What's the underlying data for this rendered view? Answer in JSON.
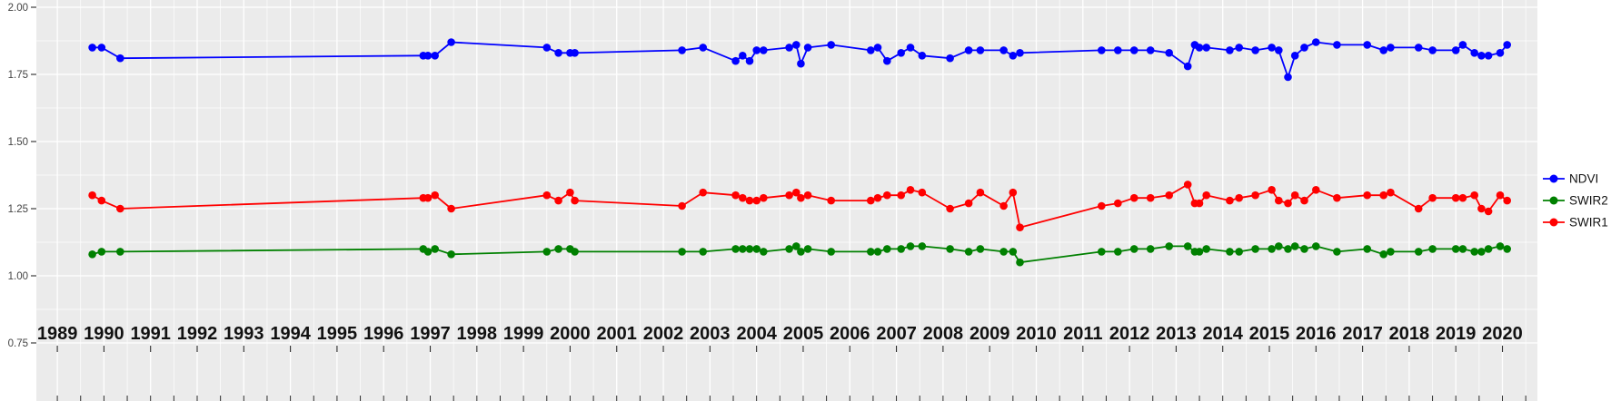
{
  "chart_data": {
    "type": "line",
    "title": "",
    "xlabel": "",
    "ylabel": "",
    "panel_bg": "#EBEBEB",
    "grid_color": "#FFFFFF",
    "grid": "major and minor white gridlines on gray panel",
    "legend_position": "right",
    "xlim": [
      1988.55,
      2020.75
    ],
    "ylim": [
      0.534,
      2.027
    ],
    "ytick_values": [
      2.0,
      1.75,
      1.5,
      1.25,
      1.0,
      0.75
    ],
    "ytick_labels": [
      "2.00",
      "1.75",
      "1.50",
      "1.25",
      "1.00",
      "0.75"
    ],
    "xtick_values": [
      1989,
      1990,
      1991,
      1992,
      1993,
      1994,
      1995,
      1996,
      1997,
      1998,
      1999,
      2000,
      2001,
      2002,
      2003,
      2004,
      2005,
      2006,
      2007,
      2008,
      2009,
      2010,
      2011,
      2012,
      2013,
      2014,
      2015,
      2016,
      2017,
      2018,
      2019,
      2020
    ],
    "xtick_labels": [
      "1989",
      "1990",
      "1991",
      "1992",
      "1993",
      "1994",
      "1995",
      "1996",
      "1997",
      "1998",
      "1999",
      "2000",
      "2001",
      "2002",
      "2003",
      "2004",
      "2005",
      "2006",
      "2007",
      "2008",
      "2009",
      "2010",
      "2011",
      "2012",
      "2013",
      "2014",
      "2015",
      "2016",
      "2017",
      "2018",
      "2019",
      "2020"
    ],
    "x": [
      1989.75,
      1989.95,
      1990.35,
      1996.85,
      1996.95,
      1997.1,
      1997.45,
      1999.5,
      1999.75,
      2000.0,
      2000.1,
      2002.4,
      2002.85,
      2003.55,
      2003.7,
      2003.85,
      2004.0,
      2004.15,
      2004.7,
      2004.85,
      2004.95,
      2005.1,
      2005.6,
      2006.45,
      2006.6,
      2006.8,
      2007.1,
      2007.3,
      2007.55,
      2008.15,
      2008.55,
      2008.8,
      2009.3,
      2009.5,
      2009.65,
      2011.4,
      2011.75,
      2012.1,
      2012.45,
      2012.85,
      2013.25,
      2013.4,
      2013.5,
      2013.65,
      2014.15,
      2014.35,
      2014.7,
      2015.05,
      2015.2,
      2015.4,
      2015.55,
      2015.75,
      2016.0,
      2016.45,
      2017.1,
      2017.45,
      2017.6,
      2018.2,
      2018.5,
      2019.0,
      2019.15,
      2019.4,
      2019.55,
      2019.7,
      2019.95,
      2020.1
    ],
    "series": [
      {
        "name": "NDVI",
        "color": "#0000FF",
        "values": [
          1.85,
          1.85,
          1.81,
          1.82,
          1.82,
          1.82,
          1.87,
          1.85,
          1.83,
          1.83,
          1.83,
          1.84,
          1.85,
          1.8,
          1.82,
          1.8,
          1.84,
          1.84,
          1.85,
          1.86,
          1.79,
          1.85,
          1.86,
          1.84,
          1.85,
          1.8,
          1.83,
          1.85,
          1.82,
          1.81,
          1.84,
          1.84,
          1.84,
          1.82,
          1.83,
          1.84,
          1.84,
          1.84,
          1.84,
          1.83,
          1.78,
          1.86,
          1.85,
          1.85,
          1.84,
          1.85,
          1.84,
          1.85,
          1.84,
          1.74,
          1.82,
          1.85,
          1.87,
          1.86,
          1.86,
          1.84,
          1.85,
          1.85,
          1.84,
          1.84,
          1.86,
          1.83,
          1.82,
          1.82,
          1.83,
          1.86
        ]
      },
      {
        "name": "SWIR2",
        "color": "#008000",
        "values": [
          1.08,
          1.09,
          1.09,
          1.1,
          1.09,
          1.1,
          1.08,
          1.09,
          1.1,
          1.1,
          1.09,
          1.09,
          1.09,
          1.1,
          1.1,
          1.1,
          1.1,
          1.09,
          1.1,
          1.11,
          1.09,
          1.1,
          1.09,
          1.09,
          1.09,
          1.1,
          1.1,
          1.11,
          1.11,
          1.1,
          1.09,
          1.1,
          1.09,
          1.09,
          1.05,
          1.09,
          1.09,
          1.1,
          1.1,
          1.11,
          1.11,
          1.09,
          1.09,
          1.1,
          1.09,
          1.09,
          1.1,
          1.1,
          1.11,
          1.1,
          1.11,
          1.1,
          1.11,
          1.09,
          1.1,
          1.08,
          1.09,
          1.09,
          1.1,
          1.1,
          1.1,
          1.09,
          1.09,
          1.1,
          1.11,
          1.1
        ]
      },
      {
        "name": "SWIR1",
        "color": "#FF0000",
        "values": [
          1.3,
          1.28,
          1.25,
          1.29,
          1.29,
          1.3,
          1.25,
          1.3,
          1.28,
          1.31,
          1.28,
          1.26,
          1.31,
          1.3,
          1.29,
          1.28,
          1.28,
          1.29,
          1.3,
          1.31,
          1.29,
          1.3,
          1.28,
          1.28,
          1.29,
          1.3,
          1.3,
          1.32,
          1.31,
          1.25,
          1.27,
          1.31,
          1.26,
          1.31,
          1.18,
          1.26,
          1.27,
          1.29,
          1.29,
          1.3,
          1.34,
          1.27,
          1.27,
          1.3,
          1.28,
          1.29,
          1.3,
          1.32,
          1.28,
          1.27,
          1.3,
          1.28,
          1.32,
          1.29,
          1.3,
          1.3,
          1.31,
          1.25,
          1.29,
          1.29,
          1.29,
          1.3,
          1.25,
          1.24,
          1.3,
          1.28
        ]
      }
    ],
    "legend": {
      "entries": [
        {
          "label": "NDVI",
          "color": "#0000FF"
        },
        {
          "label": "SWIR2",
          "color": "#008000"
        },
        {
          "label": "SWIR1",
          "color": "#FF0000"
        }
      ]
    }
  }
}
